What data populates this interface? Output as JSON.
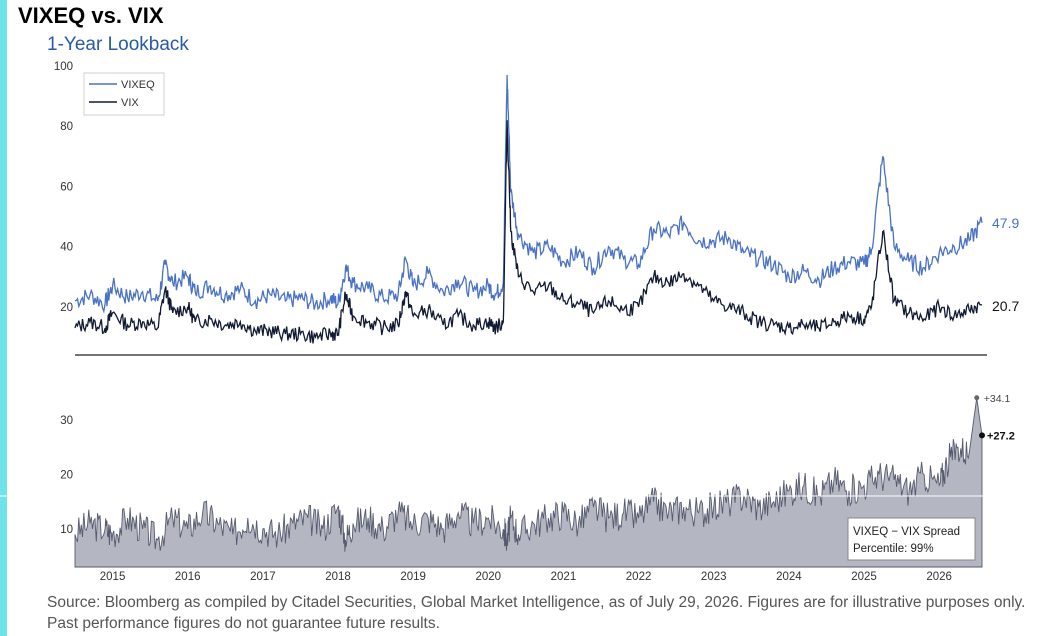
{
  "title": "VIXEQ vs. VIX",
  "subtitle": "1-Year Lookback",
  "source": "Source: Bloomberg as compiled by Citadel Securities, Global Market Intelligence, as of July 29, 2026. Figures are for illustrative purposes only. Past performance figures do not guarantee future results.",
  "colors": {
    "accent_bar": "#6ee3ea",
    "vixeq": "#4a72c4",
    "vix": "#111a33",
    "spread_fill": "#b4b6c2",
    "spread_line": "#555a6e"
  },
  "chart_data": [
    {
      "type": "line",
      "legend": [
        "VIXEQ",
        "VIX"
      ],
      "legend_position": "top-left",
      "ylim": [
        10,
        100
      ],
      "yticks": [
        20,
        40,
        60,
        80,
        100
      ],
      "end_labels": {
        "vixeq": "47.9",
        "vix": "20.7"
      },
      "series": [
        {
          "name": "VIXEQ",
          "x": [
            2014.5,
            2014.7,
            2014.9,
            2015.0,
            2015.2,
            2015.4,
            2015.6,
            2015.7,
            2015.8,
            2016.0,
            2016.1,
            2016.3,
            2016.5,
            2016.7,
            2016.9,
            2017.1,
            2017.3,
            2017.5,
            2017.7,
            2017.9,
            2018.0,
            2018.1,
            2018.2,
            2018.4,
            2018.6,
            2018.8,
            2018.9,
            2019.0,
            2019.2,
            2019.4,
            2019.6,
            2019.8,
            2020.0,
            2020.1,
            2020.2,
            2020.25,
            2020.3,
            2020.4,
            2020.6,
            2020.8,
            2021.0,
            2021.2,
            2021.4,
            2021.6,
            2021.8,
            2022.0,
            2022.2,
            2022.4,
            2022.6,
            2022.8,
            2023.0,
            2023.2,
            2023.4,
            2023.6,
            2023.8,
            2024.0,
            2024.2,
            2024.4,
            2024.6,
            2024.8,
            2025.0,
            2025.1,
            2025.25,
            2025.4,
            2025.6,
            2025.8,
            2026.0,
            2026.2,
            2026.4,
            2026.57
          ],
          "values": [
            22,
            24,
            21,
            27,
            23,
            25,
            22,
            34,
            28,
            30,
            25,
            27,
            24,
            26,
            22,
            24,
            22,
            23,
            21,
            23,
            21,
            33,
            28,
            26,
            23,
            24,
            36,
            27,
            31,
            25,
            29,
            25,
            27,
            24,
            28,
            97,
            58,
            44,
            38,
            40,
            35,
            38,
            33,
            40,
            36,
            34,
            46,
            44,
            48,
            42,
            42,
            43,
            38,
            36,
            34,
            30,
            32,
            29,
            33,
            35,
            34,
            39,
            70,
            40,
            35,
            33,
            38,
            40,
            42,
            47.9
          ]
        },
        {
          "name": "VIX",
          "x": [
            2014.5,
            2014.7,
            2014.9,
            2015.0,
            2015.2,
            2015.4,
            2015.6,
            2015.7,
            2015.8,
            2016.0,
            2016.1,
            2016.3,
            2016.5,
            2016.7,
            2016.9,
            2017.1,
            2017.3,
            2017.5,
            2017.7,
            2017.9,
            2018.0,
            2018.1,
            2018.2,
            2018.4,
            2018.6,
            2018.8,
            2018.9,
            2019.0,
            2019.2,
            2019.4,
            2019.6,
            2019.8,
            2020.0,
            2020.1,
            2020.2,
            2020.25,
            2020.3,
            2020.4,
            2020.6,
            2020.8,
            2021.0,
            2021.2,
            2021.4,
            2021.6,
            2021.8,
            2022.0,
            2022.2,
            2022.4,
            2022.6,
            2022.8,
            2023.0,
            2023.2,
            2023.4,
            2023.6,
            2023.8,
            2024.0,
            2024.2,
            2024.4,
            2024.6,
            2024.8,
            2025.0,
            2025.1,
            2025.25,
            2025.4,
            2025.6,
            2025.8,
            2026.0,
            2026.2,
            2026.4,
            2026.57
          ],
          "values": [
            13,
            15,
            13,
            18,
            14,
            15,
            13,
            26,
            18,
            20,
            15,
            16,
            14,
            15,
            12,
            12,
            11,
            11,
            10,
            11,
            11,
            24,
            17,
            15,
            13,
            14,
            25,
            17,
            19,
            14,
            17,
            14,
            15,
            13,
            15,
            82,
            45,
            30,
            25,
            27,
            22,
            21,
            18,
            22,
            19,
            20,
            30,
            28,
            31,
            27,
            22,
            20,
            18,
            15,
            14,
            13,
            14,
            13,
            15,
            17,
            16,
            20,
            45,
            22,
            18,
            16,
            20,
            17,
            19,
            20.7
          ]
        }
      ]
    },
    {
      "type": "area",
      "series_name": "VIXEQ − VIX Spread",
      "ylim": [
        3,
        37
      ],
      "yticks": [
        10,
        20,
        30
      ],
      "x": [
        2014.5,
        2014.7,
        2014.9,
        2015.0,
        2015.2,
        2015.4,
        2015.6,
        2015.8,
        2016.0,
        2016.2,
        2016.4,
        2016.6,
        2016.8,
        2017.0,
        2017.2,
        2017.4,
        2017.6,
        2017.8,
        2018.0,
        2018.1,
        2018.2,
        2018.4,
        2018.6,
        2018.8,
        2019.0,
        2019.2,
        2019.4,
        2019.6,
        2019.8,
        2020.0,
        2020.2,
        2020.25,
        2020.3,
        2020.4,
        2020.6,
        2020.8,
        2021.0,
        2021.2,
        2021.4,
        2021.6,
        2021.8,
        2022.0,
        2022.2,
        2022.4,
        2022.6,
        2022.8,
        2023.0,
        2023.2,
        2023.4,
        2023.6,
        2023.8,
        2024.0,
        2024.2,
        2024.4,
        2024.6,
        2024.8,
        2025.0,
        2025.2,
        2025.4,
        2025.6,
        2025.8,
        2026.0,
        2026.1,
        2026.25,
        2026.4,
        2026.5,
        2026.57
      ],
      "values": [
        9,
        11,
        10,
        9,
        12,
        10,
        8,
        12,
        10,
        13,
        11,
        9,
        12,
        10,
        9,
        11,
        12,
        10,
        14,
        8,
        11,
        12,
        10,
        13,
        11,
        12,
        10,
        13,
        11,
        12,
        10,
        8,
        12,
        9,
        11,
        12,
        13,
        11,
        14,
        12,
        13,
        12,
        15,
        13,
        14,
        13,
        14,
        15,
        16,
        14,
        15,
        17,
        18,
        16,
        19,
        17,
        18,
        20,
        19,
        17,
        20,
        18,
        22,
        25,
        24,
        34.1,
        27.2
      ],
      "max_label": "+34.1",
      "last_label": "+27.2",
      "annotation": {
        "line1": "VIXEQ − VIX Spread",
        "line2": "Percentile: 99%"
      }
    }
  ],
  "x_axis": {
    "years": [
      "2015",
      "2016",
      "2017",
      "2018",
      "2019",
      "2020",
      "2021",
      "2022",
      "2023",
      "2024",
      "2025",
      "2026"
    ]
  }
}
